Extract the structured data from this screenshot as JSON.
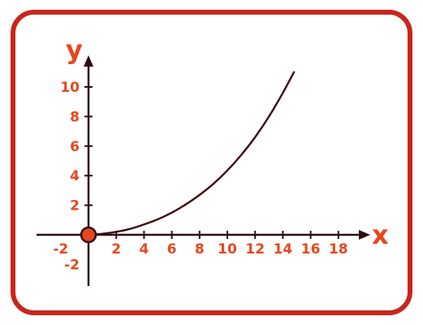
{
  "chart_data": {
    "type": "line",
    "title": "",
    "xlabel": "x",
    "ylabel": "y",
    "xlim": [
      -2.8,
      20.2
    ],
    "ylim": [
      -2.6,
      11.2
    ],
    "x_ticks": [
      {
        "value": -2,
        "label": "-2"
      },
      {
        "value": 2,
        "label": "2"
      },
      {
        "value": 4,
        "label": "4"
      },
      {
        "value": 6,
        "label": "6"
      },
      {
        "value": 8,
        "label": "8"
      },
      {
        "value": 10,
        "label": "10"
      },
      {
        "value": 12,
        "label": "12"
      },
      {
        "value": 14,
        "label": "14"
      },
      {
        "value": 16,
        "label": "16"
      },
      {
        "value": 18,
        "label": "18"
      }
    ],
    "y_ticks": [
      {
        "value": -2,
        "label": "-2"
      },
      {
        "value": 2,
        "label": "2"
      },
      {
        "value": 4,
        "label": "4"
      },
      {
        "value": 6,
        "label": "6"
      },
      {
        "value": 8,
        "label": "8"
      },
      {
        "value": 10,
        "label": "10"
      }
    ],
    "series": [
      {
        "points": [
          {
            "x": 0,
            "y": 0
          },
          {
            "x": 1,
            "y": 0.07
          },
          {
            "x": 2,
            "y": 0.2
          },
          {
            "x": 3,
            "y": 0.4
          },
          {
            "x": 4,
            "y": 0.7
          },
          {
            "x": 5,
            "y": 1.05
          },
          {
            "x": 6,
            "y": 1.5
          },
          {
            "x": 7,
            "y": 2.05
          },
          {
            "x": 8,
            "y": 2.7
          },
          {
            "x": 9,
            "y": 3.45
          },
          {
            "x": 10,
            "y": 4.35
          },
          {
            "x": 11,
            "y": 5.4
          },
          {
            "x": 12,
            "y": 6.6
          },
          {
            "x": 13,
            "y": 8.0
          },
          {
            "x": 14,
            "y": 9.6
          },
          {
            "x": 14.8,
            "y": 11.0
          }
        ]
      }
    ],
    "origin_marker": {
      "x": 0,
      "y": 0
    },
    "grid": false,
    "legend": "none"
  },
  "colors": {
    "frame": "#c8261c",
    "label": "#e8461e",
    "axis": "#2b0f12",
    "curve": "#3c0d12",
    "marker_fill": "#e8461e",
    "marker_stroke": "#2b0f12"
  }
}
